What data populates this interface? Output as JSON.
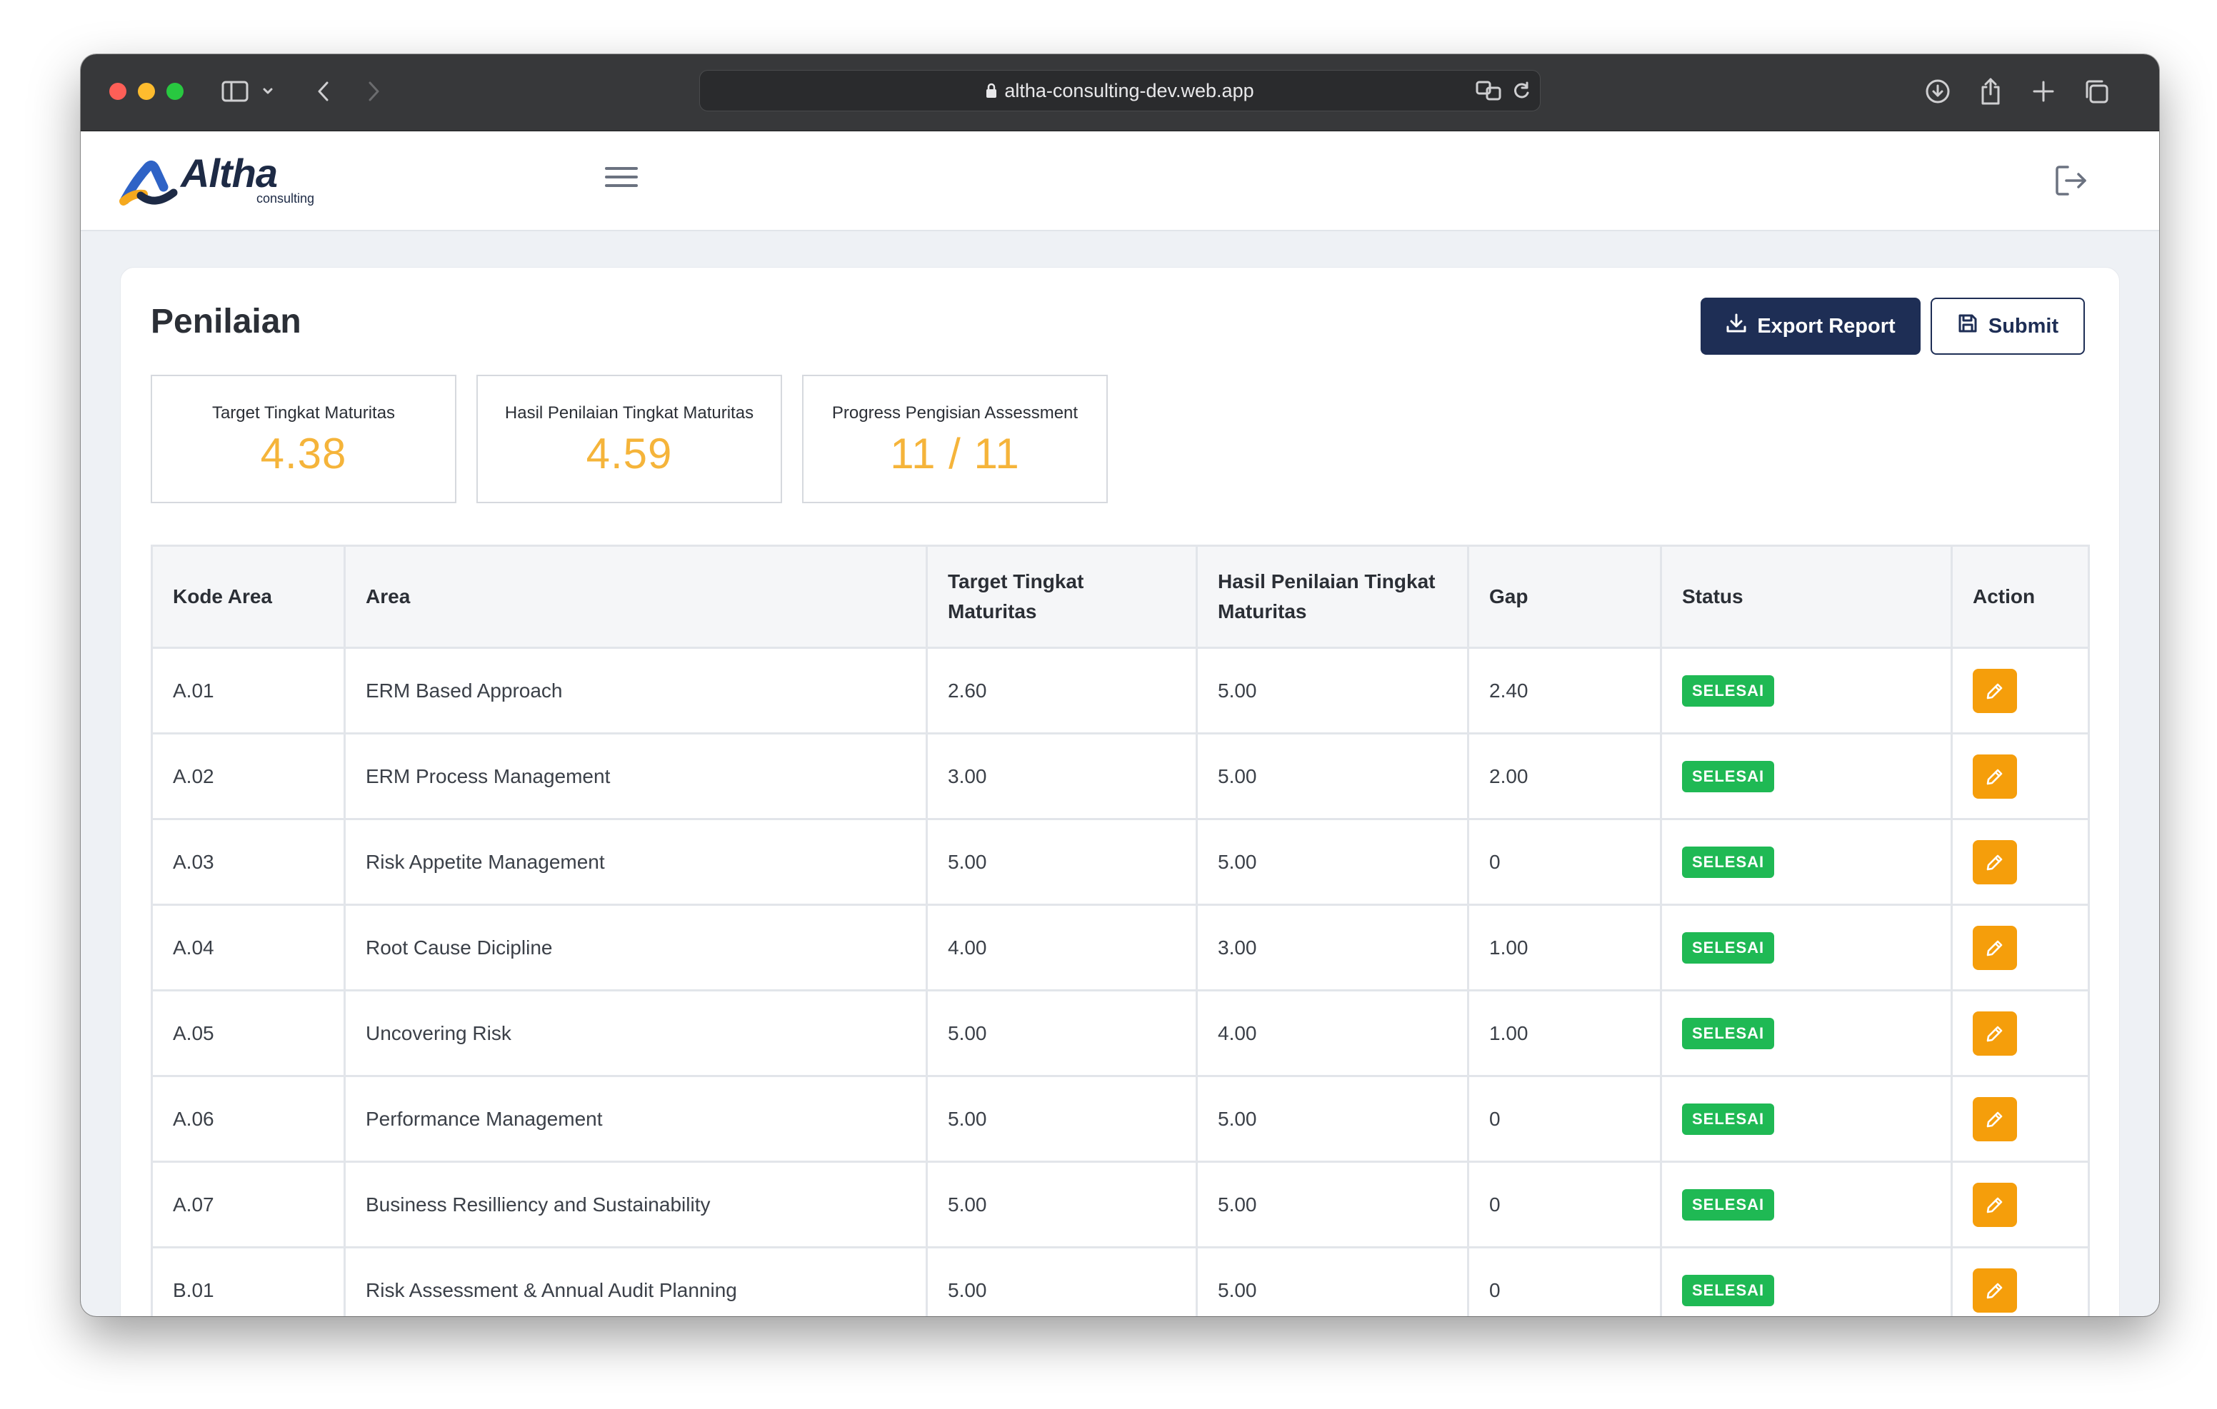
{
  "browser": {
    "url": "altha-consulting-dev.web.app"
  },
  "header": {
    "logo_text": "Altha",
    "logo_subtext": "consulting"
  },
  "page": {
    "title": "Penilaian",
    "export_label": "Export Report",
    "submit_label": "Submit"
  },
  "stats": [
    {
      "label": "Target Tingkat Maturitas",
      "value": "4.38"
    },
    {
      "label": "Hasil Penilaian Tingkat Maturitas",
      "value": "4.59"
    },
    {
      "label": "Progress Pengisian Assessment",
      "value": "11 / 11"
    }
  ],
  "table": {
    "headers": [
      "Kode Area",
      "Area",
      "Target Tingkat Maturitas",
      "Hasil Penilaian Tingkat Maturitas",
      "Gap",
      "Status",
      "Action"
    ],
    "rows": [
      {
        "kode": "A.01",
        "area": "ERM Based Approach",
        "target": "2.60",
        "hasil": "5.00",
        "gap": "2.40",
        "status": "SELESAI"
      },
      {
        "kode": "A.02",
        "area": "ERM Process Management",
        "target": "3.00",
        "hasil": "5.00",
        "gap": "2.00",
        "status": "SELESAI"
      },
      {
        "kode": "A.03",
        "area": "Risk Appetite Management",
        "target": "5.00",
        "hasil": "5.00",
        "gap": "0",
        "status": "SELESAI"
      },
      {
        "kode": "A.04",
        "area": "Root Cause Dicipline",
        "target": "4.00",
        "hasil": "3.00",
        "gap": "1.00",
        "status": "SELESAI"
      },
      {
        "kode": "A.05",
        "area": "Uncovering Risk",
        "target": "5.00",
        "hasil": "4.00",
        "gap": "1.00",
        "status": "SELESAI"
      },
      {
        "kode": "A.06",
        "area": "Performance Management",
        "target": "5.00",
        "hasil": "5.00",
        "gap": "0",
        "status": "SELESAI"
      },
      {
        "kode": "A.07",
        "area": "Business Resilliency and Sustainability",
        "target": "5.00",
        "hasil": "5.00",
        "gap": "0",
        "status": "SELESAI"
      },
      {
        "kode": "B.01",
        "area": "Risk Assessment & Annual Audit Planning",
        "target": "5.00",
        "hasil": "5.00",
        "gap": "0",
        "status": "SELESAI"
      }
    ]
  },
  "colors": {
    "primary": "#1e2e55",
    "accent_value": "#f5b43a",
    "status_done": "#1fb954",
    "action_edit": "#f59e0b"
  }
}
